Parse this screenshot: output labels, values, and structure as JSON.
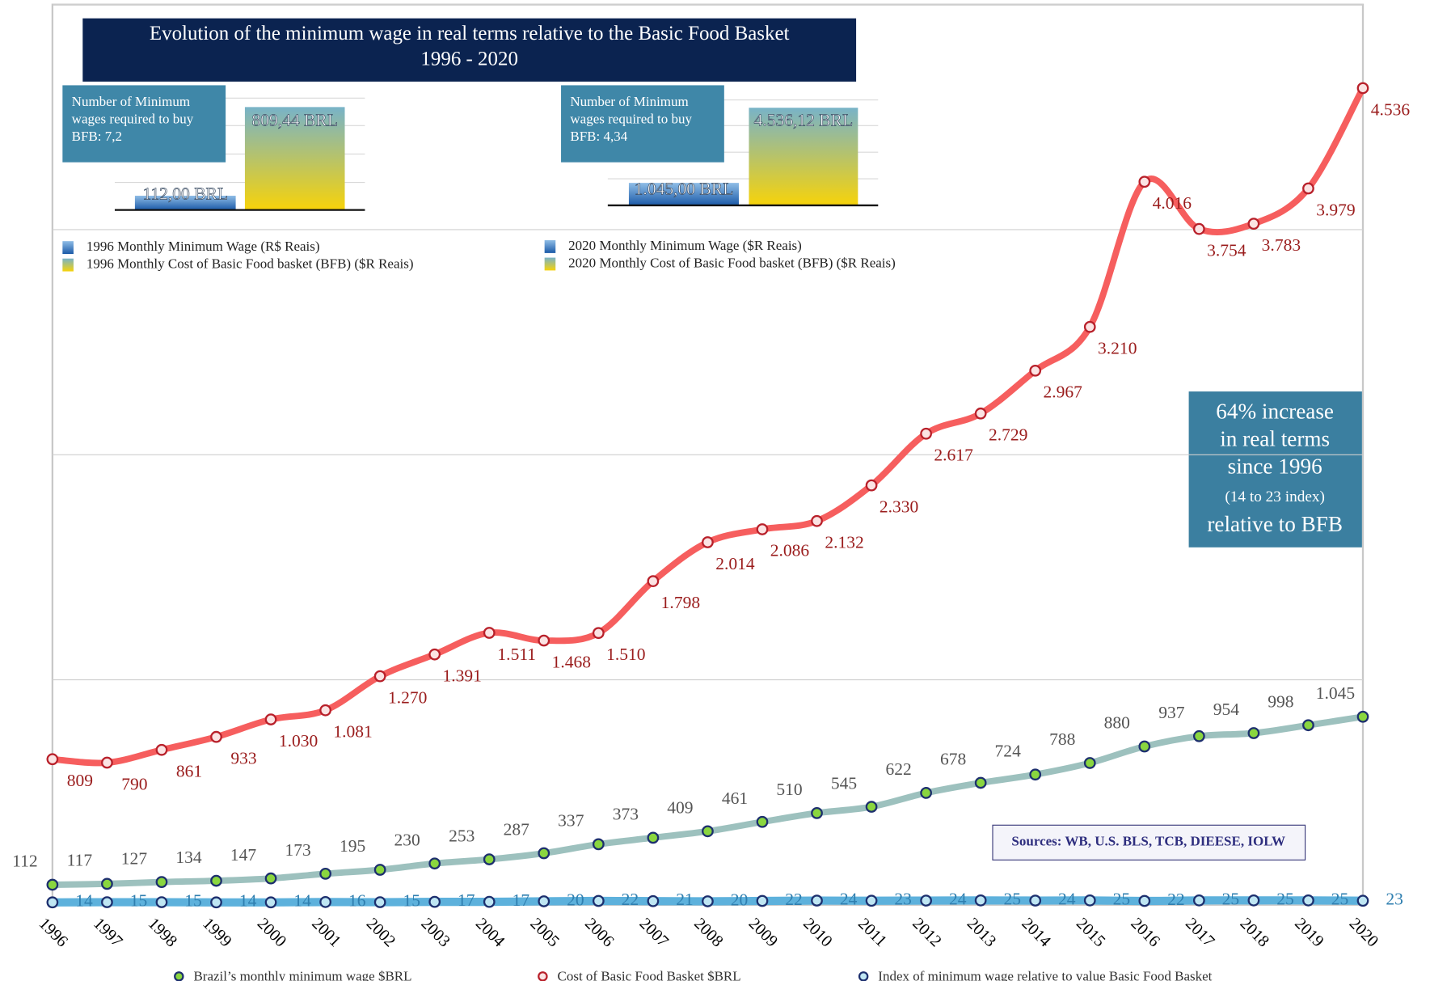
{
  "chart_data": {
    "type": "line",
    "title": "Evolution of the minimum wage in real terms relative to the Basic Food Basket",
    "subtitle": "1996 - 2020",
    "x": [
      1996,
      1997,
      1998,
      1999,
      2000,
      2001,
      2002,
      2003,
      2004,
      2005,
      2006,
      2007,
      2008,
      2009,
      2010,
      2011,
      2012,
      2013,
      2014,
      2015,
      2016,
      2017,
      2018,
      2019,
      2020
    ],
    "xlim": [
      1996,
      2020
    ],
    "ylim": [
      0,
      5000
    ],
    "yticks": [
      0,
      1250,
      2500,
      3750,
      5000
    ],
    "grid": true,
    "series": [
      {
        "name": "Brazil’s monthly minimum wage $BRL",
        "color": "#9dc1be",
        "marker_color": "#8ad63f",
        "label_color": "#555555",
        "values": [
          112,
          117,
          127,
          134,
          147,
          173,
          195,
          230,
          253,
          287,
          337,
          373,
          409,
          461,
          510,
          545,
          622,
          678,
          724,
          788,
          880,
          937,
          954,
          998,
          1045
        ],
        "value_labels": [
          "112",
          "117",
          "127",
          "134",
          "147",
          "173",
          "195",
          "230",
          "253",
          "287",
          "337",
          "373",
          "409",
          "461",
          "510",
          "545",
          "622",
          "678",
          "724",
          "788",
          "880",
          "937",
          "954",
          "998",
          "1.045"
        ]
      },
      {
        "name": "Cost of Basic Food Basket $BRL",
        "color": "#f65e5e",
        "marker_color": "#fbe3e3",
        "label_color": "#9a1c1c",
        "values": [
          809,
          790,
          861,
          933,
          1030,
          1081,
          1270,
          1391,
          1511,
          1468,
          1510,
          1798,
          2014,
          2086,
          2132,
          2330,
          2617,
          2729,
          2967,
          3210,
          4016,
          3754,
          3783,
          3979,
          4536
        ],
        "value_labels": [
          "809",
          "790",
          "861",
          "933",
          "1.030",
          "1.081",
          "1.270",
          "1.391",
          "1.511",
          "1.468",
          "1.510",
          "1.798",
          "2.014",
          "2.086",
          "2.132",
          "2.330",
          "2.617",
          "2.729",
          "2.967",
          "3.210",
          "4.016",
          "3.754",
          "3.783",
          "3.979",
          "4.536"
        ]
      },
      {
        "name": "Index of minimum wage relative to value Basic Food Basket",
        "color": "#5db1dc",
        "marker_color": "#bfe6f3",
        "label_color": "#2f7fb0",
        "values": [
          14,
          15,
          15,
          14,
          14,
          16,
          15,
          17,
          17,
          20,
          22,
          21,
          20,
          22,
          24,
          23,
          24,
          25,
          24,
          25,
          22,
          25,
          25,
          25,
          23
        ]
      }
    ],
    "annotation": [
      "64% increase",
      "in real terms",
      "since 1996",
      "(14 to 23 index)",
      "relative to BFB"
    ],
    "sources": "Sources: WB, U.S. BLS, TCB, DIEESE, IOLW",
    "insets": [
      {
        "note": [
          "Number of Minimum",
          "wages required to buy",
          "BFB: 7,2"
        ],
        "ylim": [
          0,
          880
        ],
        "bars": [
          {
            "name": "1996 Monthly Minimum Wage (R$ Reais)",
            "value": 112.0,
            "value_label": "112,00 BRL"
          },
          {
            "name": "1996 Monthly Cost of Basic Food basket (BFB) ($R Reais)",
            "value": 809.44,
            "value_label": "809,44 BRL"
          }
        ]
      },
      {
        "note": [
          "Number of Minimum",
          "wages required to buy",
          "BFB: 4,34"
        ],
        "ylim": [
          0,
          4900
        ],
        "bars": [
          {
            "name": "2020 Monthly Minimum Wage ($R Reais)",
            "value": 1045.0,
            "value_label": "1.045,00 BRL"
          },
          {
            "name": "2020 Monthly Cost of Basic Food basket (BFB) ($R Reais)",
            "value": 4536.12,
            "value_label": "4.536,12 BRL"
          }
        ]
      }
    ]
  }
}
